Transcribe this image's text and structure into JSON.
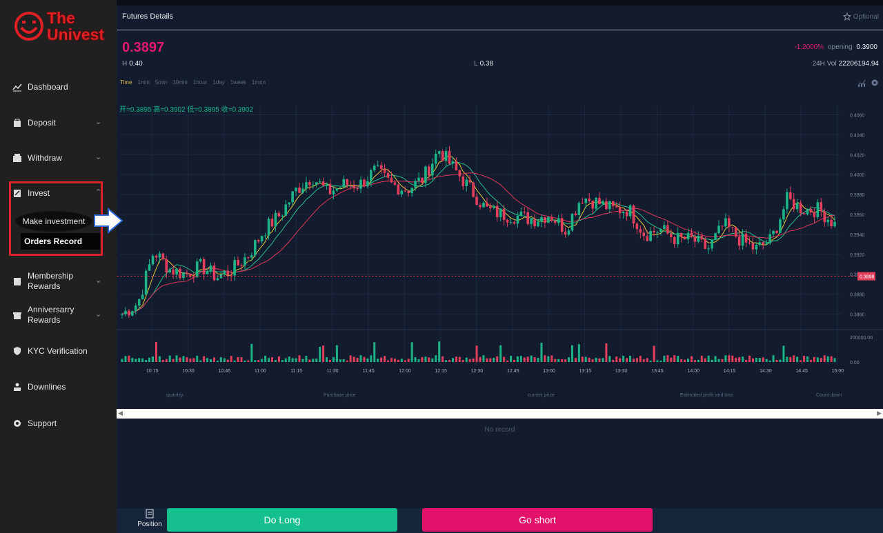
{
  "brand": {
    "line1": "The",
    "line2": "Univest",
    "color": "#e01f24"
  },
  "sidebar": {
    "items": [
      {
        "label": "Dashboard",
        "icon": "chart-line-icon",
        "expandable": false
      },
      {
        "label": "Deposit",
        "icon": "bag-icon",
        "expandable": true
      },
      {
        "label": "Withdraw",
        "icon": "wallet-icon",
        "expandable": true
      },
      {
        "label": "Invest",
        "icon": "invest-icon",
        "expandable": true
      },
      {
        "label": "Membership Rewards",
        "icon": "medal-icon",
        "expandable": true
      },
      {
        "label": "Anniversarry Rewards",
        "icon": "gift-icon",
        "expandable": true
      },
      {
        "label": "KYC Verification",
        "icon": "shield-icon",
        "expandable": false
      },
      {
        "label": "Downlines",
        "icon": "users-icon",
        "expandable": false
      },
      {
        "label": "Support",
        "icon": "gear-icon",
        "expandable": false
      }
    ],
    "invest_submenu": {
      "make_investment": "Make investment",
      "orders_record": "Orders Record"
    }
  },
  "header": {
    "title": "Futures Details",
    "optional_label": "Optional"
  },
  "ticker": {
    "price": "0.3897",
    "change_pct": "-1.2000%",
    "opening_label": "opening",
    "opening_value": "0.3900",
    "high_label": "H",
    "high_value": "0.40",
    "low_label": "L",
    "low_value": "0.38",
    "vol_label": "24H Vol",
    "vol_value": "22206194.94"
  },
  "timeframes": [
    "Time",
    "1min",
    "5min",
    "30min",
    "1hour",
    "1day",
    "1week",
    "1mon"
  ],
  "ohlc_text": "开=0.3895  高=0.3902  低=0.3895  收=0.3902",
  "chart_data": {
    "type": "candlestick",
    "y_ticks": [
      "0.4060",
      "0.4040",
      "0.4020",
      "0.4000",
      "0.3980",
      "0.3960",
      "0.3940",
      "0.3920",
      "0.3900",
      "0.3880",
      "0.3860"
    ],
    "ylim": [
      0.385,
      0.407
    ],
    "x_ticks": [
      "10:15",
      "10:30",
      "10:45",
      "11:00",
      "11:15",
      "11:30",
      "11:45",
      "12:00",
      "12:15",
      "12:30",
      "12:45",
      "13:00",
      "13:15",
      "13:30",
      "13:45",
      "14:00",
      "14:15",
      "14:30",
      "14:45",
      "15:00"
    ],
    "current_price_label": "0.3898",
    "current_price": 0.3898,
    "volume_ticks": [
      "200000.00",
      "0.00"
    ],
    "up_color": "#1cb386",
    "down_color": "#e33f5c",
    "close_path": [
      0.386,
      0.3871,
      0.3923,
      0.3905,
      0.39,
      0.3908,
      0.3897,
      0.3905,
      0.392,
      0.3945,
      0.396,
      0.3985,
      0.3998,
      0.3982,
      0.399,
      0.399,
      0.4004,
      0.399,
      0.3985,
      0.3996,
      0.4025,
      0.4005,
      0.3985,
      0.3965,
      0.396,
      0.3958,
      0.3955,
      0.396,
      0.3945,
      0.3978,
      0.3972,
      0.3965,
      0.3965,
      0.394,
      0.3945,
      0.3935,
      0.3935,
      0.3925,
      0.395,
      0.3935,
      0.3925,
      0.3935,
      0.3975,
      0.3965,
      0.3965,
      0.395
    ]
  },
  "positions_table": {
    "columns": [
      "quantity",
      "Purchase price",
      "current price",
      "Estimated profit and loss",
      "Count down"
    ],
    "empty_text": "No record"
  },
  "bottom": {
    "position_label": "Position",
    "long_label": "Do Long",
    "short_label": "Go short"
  }
}
